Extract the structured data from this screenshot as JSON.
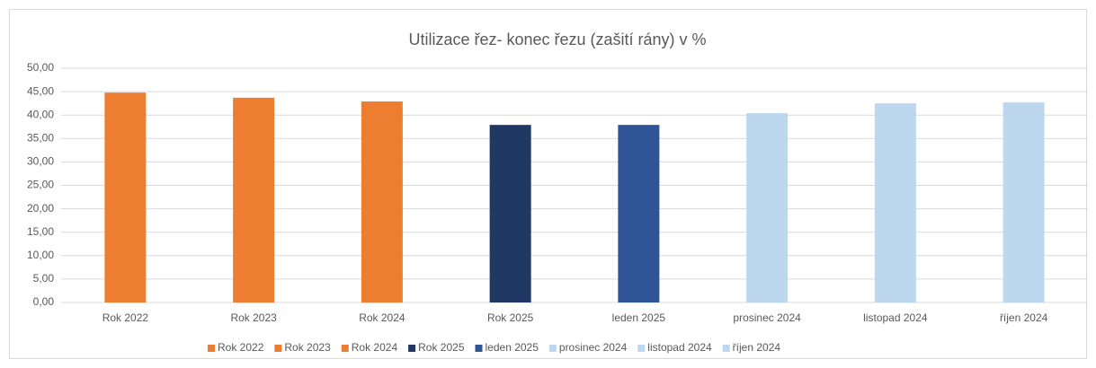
{
  "chart_data": {
    "type": "bar",
    "title": "Utilizace řez- konec řezu (zašití rány) v %",
    "categories": [
      "Rok 2022",
      "Rok 2023",
      "Rok 2024",
      "Rok 2025",
      "leden 2025",
      "prosinec 2024",
      "listopad 2024",
      "říjen 2024"
    ],
    "values": [
      44.8,
      43.7,
      42.9,
      37.9,
      37.9,
      40.4,
      42.5,
      42.7
    ],
    "colors": [
      "#ed7d31",
      "#ed7d31",
      "#ed7d31",
      "#1f3864",
      "#2f5597",
      "#bdd7ee",
      "#bdd7ee",
      "#bdd7ee"
    ],
    "ylim": [
      0,
      50
    ],
    "yticks": [
      {
        "value": 0,
        "label": "0,00"
      },
      {
        "value": 5,
        "label": "5,00"
      },
      {
        "value": 10,
        "label": "10,00"
      },
      {
        "value": 15,
        "label": "15,00"
      },
      {
        "value": 20,
        "label": "20,00"
      },
      {
        "value": 25,
        "label": "25,00"
      },
      {
        "value": 30,
        "label": "30,00"
      },
      {
        "value": 35,
        "label": "35,00"
      },
      {
        "value": 40,
        "label": "40,00"
      },
      {
        "value": 45,
        "label": "45,00"
      },
      {
        "value": 50,
        "label": "50,00"
      }
    ],
    "grid": true,
    "legend": "bottom"
  }
}
